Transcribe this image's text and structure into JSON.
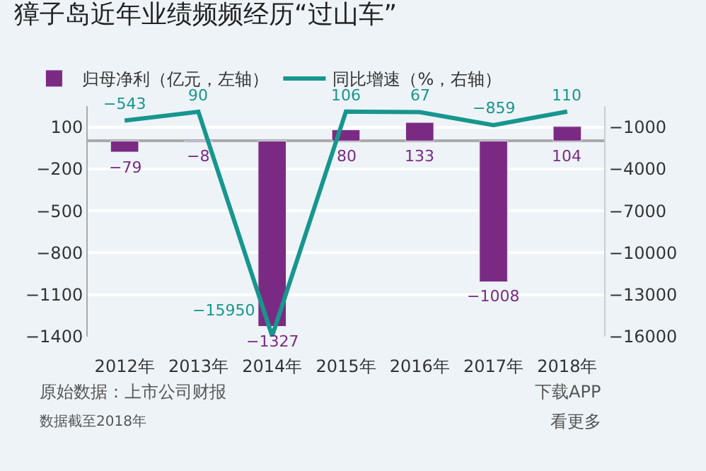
{
  "chart_data": {
    "type": "bar",
    "title": "獐子岛近年业绩频频经历“过山车”",
    "categories": [
      "2012年",
      "2013年",
      "2014年",
      "2015年",
      "2016年",
      "2017年",
      "2018年"
    ],
    "series": [
      {
        "name": "归母净利（亿元，左轴）",
        "color": "#7b2a83",
        "values": [
          -79,
          -8,
          -1327,
          80,
          133,
          -1008,
          104
        ]
      },
      {
        "name": "同比增速（%，右轴）",
        "type": "line",
        "axis": "y2",
        "color": "#17968e",
        "values": [
          -543,
          90,
          -15950,
          106,
          67,
          -859,
          110
        ]
      }
    ],
    "data_labels": true,
    "ylim": [
      -1400,
      250
    ],
    "yticks": [
      100,
      -200,
      -500,
      -800,
      -1100,
      -1400
    ],
    "y2lim": [
      -16000,
      500
    ],
    "y2ticks": [
      -1000,
      -4000,
      -7000,
      -10000,
      -13000,
      -16000
    ],
    "grid": "y",
    "legend": "top left",
    "marker": "none",
    "line_style": "solid",
    "annotations": [
      "原始数据：上市公司财报",
      "数据截至2018年",
      "下载APP",
      "看更多"
    ]
  }
}
